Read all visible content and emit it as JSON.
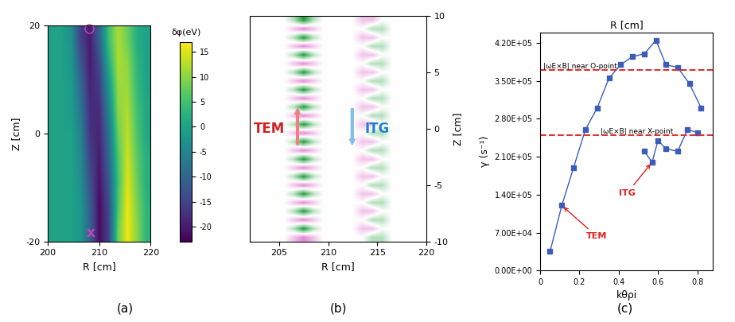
{
  "chart_data": [
    {
      "type": "heatmap",
      "panel_label": "(a)",
      "x_label": "R [cm]",
      "y_label": "Z [cm]",
      "xlim": [
        200,
        220
      ],
      "xticks": [
        200,
        210,
        220
      ],
      "ylim": [
        -20,
        20
      ],
      "yticks": [
        -20,
        0,
        20
      ],
      "cells": [
        [
          0,
          0,
          -3,
          -15,
          -20,
          -10,
          5,
          12,
          8,
          2,
          0
        ],
        [
          0,
          0,
          -2,
          -12,
          -20,
          -14,
          2,
          12,
          10,
          3,
          0
        ],
        [
          0,
          0,
          -1,
          -9,
          -19,
          -16,
          -2,
          11,
          11,
          4,
          0
        ],
        [
          0,
          0,
          -1,
          -7,
          -18,
          -18,
          -5,
          10,
          12,
          5,
          1
        ],
        [
          0,
          0,
          0,
          -5,
          -17,
          -19,
          -8,
          8,
          13,
          6,
          1
        ],
        [
          0,
          0,
          0,
          -4,
          -15,
          -20,
          -10,
          6,
          14,
          7,
          2
        ],
        [
          0,
          0,
          0,
          -3,
          -13,
          -21,
          -12,
          5,
          15,
          8,
          2
        ],
        [
          0,
          0,
          0,
          -2,
          -11,
          -22,
          -14,
          6,
          16,
          9,
          3
        ],
        [
          0,
          0,
          0,
          -2,
          -10,
          -22,
          -15,
          8,
          16,
          10,
          3
        ]
      ],
      "colorbar_title": "δφ(eV)",
      "colorbar_range": [
        -23,
        17
      ],
      "colorbar_ticks": [
        -20,
        -15,
        -10,
        -5,
        0,
        5,
        10,
        15
      ],
      "annotations": [
        "X"
      ]
    },
    {
      "type": "heatmap",
      "panel_label": "(b)",
      "x_label": "R [cm]",
      "y_label": "Z [cm]",
      "xlim": [
        202,
        220
      ],
      "xticks": [
        205,
        210,
        215,
        220
      ],
      "ylim": [
        -10,
        10
      ],
      "yticks": [
        -10,
        -5,
        0,
        5,
        10
      ],
      "cells": [
        [
          0,
          0,
          0,
          0,
          -1,
          -3,
          -1,
          0,
          0,
          0,
          0,
          1,
          1,
          0,
          0,
          0,
          0,
          0
        ],
        [
          0,
          0,
          0,
          0,
          1,
          2,
          1,
          0,
          0,
          0,
          0,
          0,
          -1,
          -1,
          0,
          0,
          0,
          0
        ],
        [
          0,
          0,
          0,
          0,
          -1,
          -3,
          -1,
          0,
          0,
          0,
          0,
          1,
          1,
          0,
          0,
          0,
          0,
          0
        ],
        [
          0,
          0,
          0,
          0,
          1,
          2,
          1,
          0,
          0,
          0,
          0,
          0,
          -1,
          -1,
          0,
          0,
          0,
          0
        ],
        [
          0,
          0,
          0,
          0,
          -1,
          -3,
          -1,
          0,
          0,
          0,
          0,
          1,
          1,
          0,
          0,
          0,
          0,
          0
        ],
        [
          0,
          0,
          0,
          0,
          1,
          2,
          1,
          0,
          0,
          0,
          0,
          0,
          -1,
          -1,
          0,
          0,
          0,
          0
        ],
        [
          0,
          0,
          0,
          0,
          -1,
          -3,
          -1,
          0,
          0,
          0,
          0,
          1,
          1,
          0,
          0,
          0,
          0,
          0
        ],
        [
          0,
          0,
          0,
          0,
          1,
          2,
          1,
          0,
          0,
          0,
          0,
          0,
          -1,
          -1,
          0,
          0,
          0,
          0
        ],
        [
          0,
          0,
          0,
          0,
          -1,
          -3,
          -1,
          0,
          0,
          0,
          0,
          1,
          1,
          0,
          0,
          0,
          0,
          0
        ],
        [
          0,
          0,
          0,
          0,
          1,
          2,
          1,
          0,
          0,
          0,
          0,
          0,
          -1,
          -1,
          0,
          0,
          0,
          0
        ],
        [
          0,
          0,
          0,
          0,
          -1,
          -3,
          -1,
          0,
          0,
          0,
          0,
          1,
          1,
          0,
          0,
          0,
          0,
          0
        ],
        [
          0,
          0,
          0,
          0,
          1,
          2,
          1,
          0,
          0,
          0,
          0,
          0,
          -1,
          -1,
          0,
          0,
          0,
          0
        ],
        [
          0,
          0,
          0,
          0,
          -1,
          -3,
          -1,
          0,
          0,
          0,
          0,
          1,
          1,
          0,
          0,
          0,
          0,
          0
        ],
        [
          0,
          0,
          0,
          0,
          1,
          2,
          1,
          0,
          0,
          0,
          0,
          0,
          -1,
          -1,
          0,
          0,
          0,
          0
        ],
        [
          0,
          0,
          0,
          0,
          -1,
          -3,
          -1,
          0,
          0,
          0,
          0,
          1,
          1,
          0,
          0,
          0,
          0,
          0
        ],
        [
          0,
          0,
          0,
          0,
          1,
          2,
          1,
          0,
          0,
          0,
          0,
          0,
          -1,
          -1,
          0,
          0,
          0,
          0
        ],
        [
          0,
          0,
          0,
          0,
          -1,
          -3,
          -1,
          0,
          0,
          0,
          0,
          1,
          1,
          0,
          0,
          0,
          0,
          0
        ],
        [
          0,
          0,
          0,
          0,
          1,
          2,
          1,
          0,
          0,
          0,
          0,
          0,
          -1,
          -1,
          0,
          0,
          0,
          0
        ],
        [
          0,
          0,
          0,
          0,
          -1,
          -3,
          -1,
          0,
          0,
          0,
          0,
          1,
          1,
          0,
          0,
          0,
          0,
          0
        ],
        [
          0,
          0,
          0,
          0,
          1,
          2,
          1,
          0,
          0,
          0,
          0,
          0,
          -1,
          -1,
          0,
          0,
          0,
          0
        ],
        [
          0,
          0,
          0,
          0,
          -1,
          -3,
          -1,
          0,
          0,
          0,
          0,
          1,
          1,
          0,
          0,
          0,
          0,
          0
        ],
        [
          0,
          0,
          0,
          0,
          1,
          2,
          1,
          0,
          0,
          0,
          0,
          0,
          -1,
          -1,
          0,
          0,
          0,
          0
        ],
        [
          0,
          0,
          0,
          0,
          -1,
          -3,
          -1,
          0,
          0,
          0,
          0,
          1,
          1,
          0,
          0,
          0,
          0,
          0
        ],
        [
          0,
          0,
          0,
          0,
          1,
          2,
          1,
          0,
          0,
          0,
          0,
          0,
          -1,
          -1,
          0,
          0,
          0,
          0
        ],
        [
          0,
          0,
          0,
          0,
          -1,
          -3,
          -1,
          0,
          0,
          0,
          0,
          1,
          1,
          0,
          0,
          0,
          0,
          0
        ],
        [
          0,
          0,
          0,
          0,
          1,
          2,
          1,
          0,
          0,
          0,
          0,
          0,
          -1,
          -1,
          0,
          0,
          0,
          0
        ]
      ],
      "annotations": [
        "TEM",
        "ITG"
      ]
    },
    {
      "type": "line",
      "panel_label": "(c)",
      "title": "R [cm]",
      "x_label": "kθρi",
      "y_label": "γ (s⁻¹)",
      "xlim": [
        0,
        0.88
      ],
      "xticks": [
        0,
        0.2,
        0.4,
        0.6,
        0.8
      ],
      "ylim": [
        0,
        440000
      ],
      "yticks": [
        {
          "value": 0,
          "label": "0.00E+00"
        },
        {
          "value": 70000,
          "label": "7.00E+04"
        },
        {
          "value": 140000,
          "label": "1.40E+05"
        },
        {
          "value": 210000,
          "label": "2.10E+05"
        },
        {
          "value": 280000,
          "label": "2.80E+05"
        },
        {
          "value": 350000,
          "label": "3.50E+05"
        },
        {
          "value": 420000,
          "label": "4.20E+05"
        }
      ],
      "series": [
        {
          "name": "TEM",
          "color": "#3d5cb8",
          "marker": "square",
          "x": [
            0.05,
            0.11,
            0.17,
            0.23,
            0.29,
            0.35,
            0.41,
            0.47,
            0.53,
            0.59,
            0.64,
            0.7,
            0.76,
            0.82
          ],
          "values": [
            35000,
            120000,
            190000,
            260000,
            300000,
            355000,
            380000,
            395000,
            400000,
            425000,
            380000,
            375000,
            345000,
            300000
          ]
        },
        {
          "name": "ITG",
          "color": "#3d5cb8",
          "marker": "square",
          "x": [
            0.53,
            0.57,
            0.6,
            0.64,
            0.7,
            0.75,
            0.8
          ],
          "values": [
            220000,
            200000,
            240000,
            225000,
            220000,
            260000,
            255000
          ]
        }
      ],
      "reference_lines": [
        {
          "value": 370000,
          "label": "|ωE×B| near O-point"
        },
        {
          "value": 250000,
          "label": "|ωE×B| near X-point"
        }
      ]
    }
  ]
}
